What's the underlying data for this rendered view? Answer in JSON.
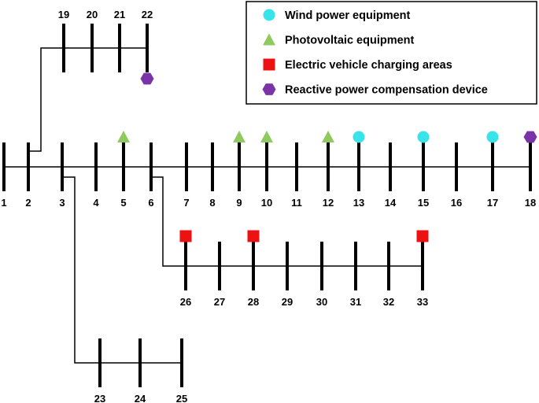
{
  "legend": {
    "items": [
      {
        "label": "Wind power equipment",
        "type": "wind"
      },
      {
        "label": "Photovoltaic equipment",
        "type": "pv"
      },
      {
        "label": "Electric vehicle charging areas",
        "type": "ev"
      },
      {
        "label": "Reactive power compensation device",
        "type": "reactive"
      }
    ]
  },
  "colors": {
    "wind": "#38e3ea",
    "pv": "#8fc95f",
    "ev": "#ee1111",
    "reactive": "#7a34a8"
  },
  "buses": [
    {
      "id": "1"
    },
    {
      "id": "2"
    },
    {
      "id": "3"
    },
    {
      "id": "4"
    },
    {
      "id": "5",
      "device": "pv"
    },
    {
      "id": "6"
    },
    {
      "id": "7"
    },
    {
      "id": "8"
    },
    {
      "id": "9",
      "device": "pv"
    },
    {
      "id": "10",
      "device": "pv"
    },
    {
      "id": "11"
    },
    {
      "id": "12",
      "device": "pv"
    },
    {
      "id": "13",
      "device": "wind"
    },
    {
      "id": "14"
    },
    {
      "id": "15",
      "device": "wind"
    },
    {
      "id": "16"
    },
    {
      "id": "17",
      "device": "wind"
    },
    {
      "id": "18",
      "device": "reactive"
    },
    {
      "id": "19"
    },
    {
      "id": "20"
    },
    {
      "id": "21"
    },
    {
      "id": "22",
      "device": "reactive"
    },
    {
      "id": "23"
    },
    {
      "id": "24"
    },
    {
      "id": "25"
    },
    {
      "id": "26",
      "device": "ev"
    },
    {
      "id": "27"
    },
    {
      "id": "28",
      "device": "ev"
    },
    {
      "id": "29"
    },
    {
      "id": "30"
    },
    {
      "id": "31"
    },
    {
      "id": "32"
    },
    {
      "id": "33",
      "device": "ev"
    }
  ]
}
